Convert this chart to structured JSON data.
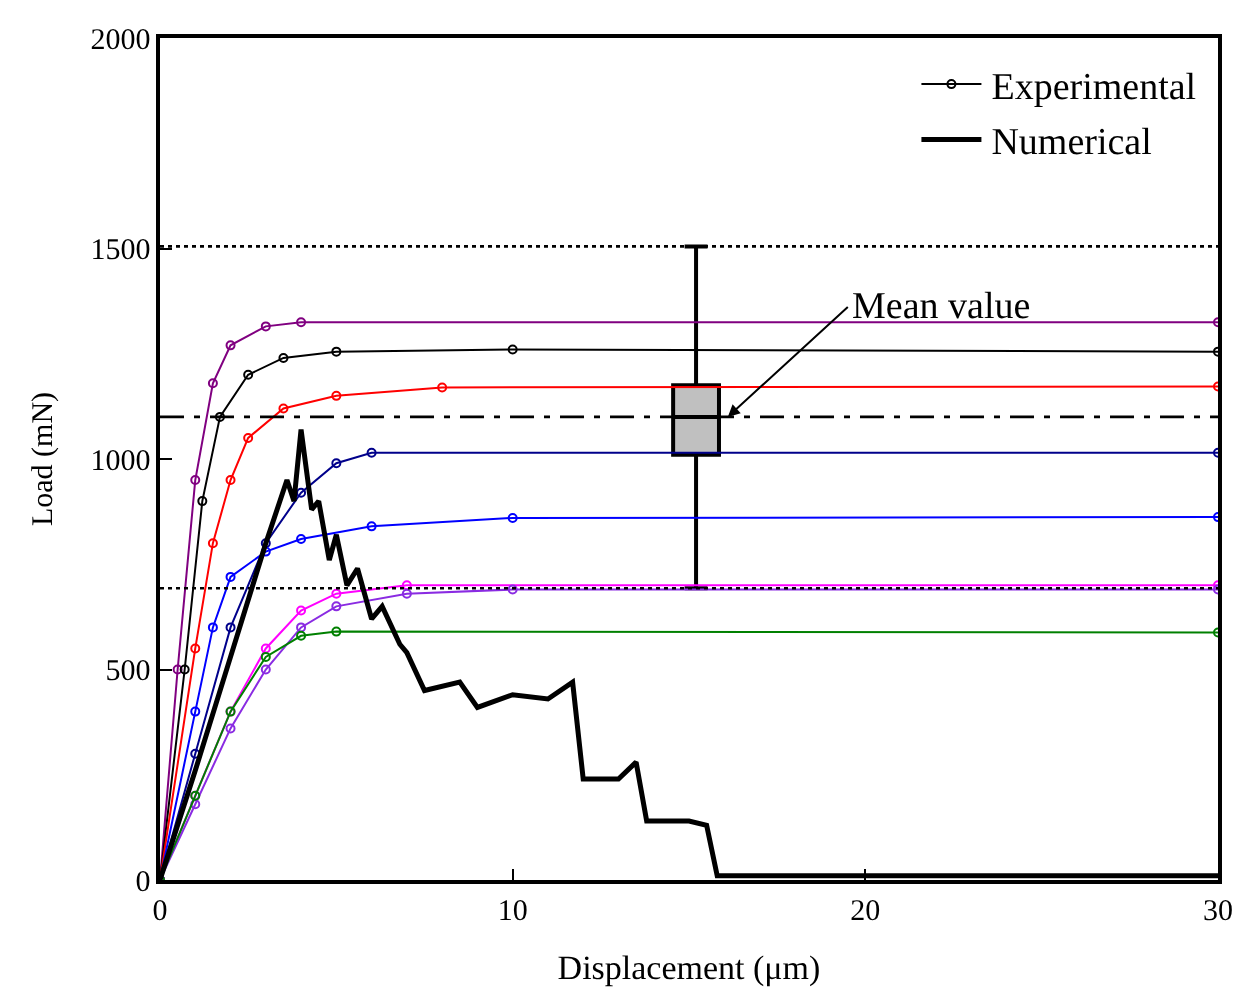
{
  "chart_data": {
    "type": "line",
    "xlabel": "Displacement (μm)",
    "ylabel": "Load (mN)",
    "xlim": [
      0,
      30
    ],
    "ylim": [
      0,
      2000
    ],
    "xticks": [
      0,
      10,
      20,
      30
    ],
    "yticks": [
      0,
      500,
      1000,
      1500,
      2000
    ],
    "legend": "top right",
    "marker": "circle",
    "series": [
      {
        "color": "#800080",
        "x": [
          0,
          0.5,
          1,
          1.5,
          2,
          3,
          4,
          30
        ],
        "values": [
          0,
          500,
          950,
          1180,
          1270,
          1315,
          1325,
          1325
        ]
      },
      {
        "name": "Experimental",
        "color": "#000000",
        "x": [
          0,
          0.7,
          1.2,
          1.7,
          2.5,
          3.5,
          5,
          10,
          30
        ],
        "values": [
          0,
          500,
          900,
          1100,
          1200,
          1240,
          1255,
          1260,
          1255
        ]
      },
      {
        "color": "#ff0000",
        "x": [
          0,
          1,
          1.5,
          2,
          2.5,
          3.5,
          5,
          8,
          30
        ],
        "values": [
          0,
          550,
          800,
          950,
          1050,
          1120,
          1150,
          1170,
          1172
        ]
      },
      {
        "color": "#00008b",
        "x": [
          0,
          1,
          2,
          3,
          4,
          5,
          6,
          30
        ],
        "values": [
          0,
          300,
          600,
          800,
          920,
          990,
          1015,
          1015
        ]
      },
      {
        "color": "#0000ff",
        "x": [
          0,
          1,
          1.5,
          2,
          3,
          4,
          6,
          10,
          30
        ],
        "values": [
          0,
          400,
          600,
          720,
          780,
          810,
          840,
          860,
          862
        ]
      },
      {
        "color": "#ff00ff",
        "x": [
          0,
          1,
          2,
          3,
          4,
          5,
          7,
          30
        ],
        "values": [
          0,
          200,
          400,
          550,
          640,
          680,
          700,
          700
        ]
      },
      {
        "color": "#8a2be2",
        "x": [
          0,
          1,
          2,
          3,
          4,
          5,
          7,
          10,
          30
        ],
        "values": [
          0,
          180,
          360,
          500,
          600,
          650,
          680,
          690,
          690
        ]
      },
      {
        "color": "#008000",
        "x": [
          0,
          1,
          2,
          3,
          4,
          5,
          30
        ],
        "values": [
          0,
          200,
          400,
          530,
          580,
          590,
          588
        ]
      },
      {
        "name": "Numerical",
        "color": "#000000",
        "marker": "none",
        "x": [
          0,
          1,
          2,
          3,
          3.6,
          3.8,
          4.0,
          4.3,
          4.5,
          4.8,
          5.0,
          5.3,
          5.6,
          6.0,
          6.3,
          6.8,
          7.0,
          7.5,
          8.5,
          9.0,
          10.0,
          11.0,
          11.7,
          12.0,
          13.0,
          13.5,
          13.8,
          15.0,
          15.5,
          15.8,
          20,
          30
        ],
        "values": [
          0,
          260,
          530,
          800,
          950,
          900,
          1070,
          880,
          900,
          760,
          820,
          700,
          740,
          620,
          650,
          560,
          540,
          450,
          470,
          410,
          440,
          430,
          470,
          240,
          240,
          280,
          140,
          140,
          130,
          10,
          10,
          10
        ]
      },
      {
        "type": "box",
        "color": "#000000",
        "x": [
          15.2
        ],
        "boxes": [
          {
            "low": 693,
            "q1": 1010,
            "median": 1100,
            "q3": 1175,
            "high": 1505
          }
        ]
      }
    ],
    "ref_lines": [
      {
        "axis": "y",
        "value": 1505,
        "line_style": "dotted"
      },
      {
        "axis": "y",
        "value": 693,
        "line_style": "dotted"
      },
      {
        "axis": "y",
        "value": 1100,
        "line_style": "dashed"
      }
    ],
    "annotations": [
      {
        "text": "Mean value",
        "x": 16.1,
        "y": 1100
      }
    ]
  }
}
